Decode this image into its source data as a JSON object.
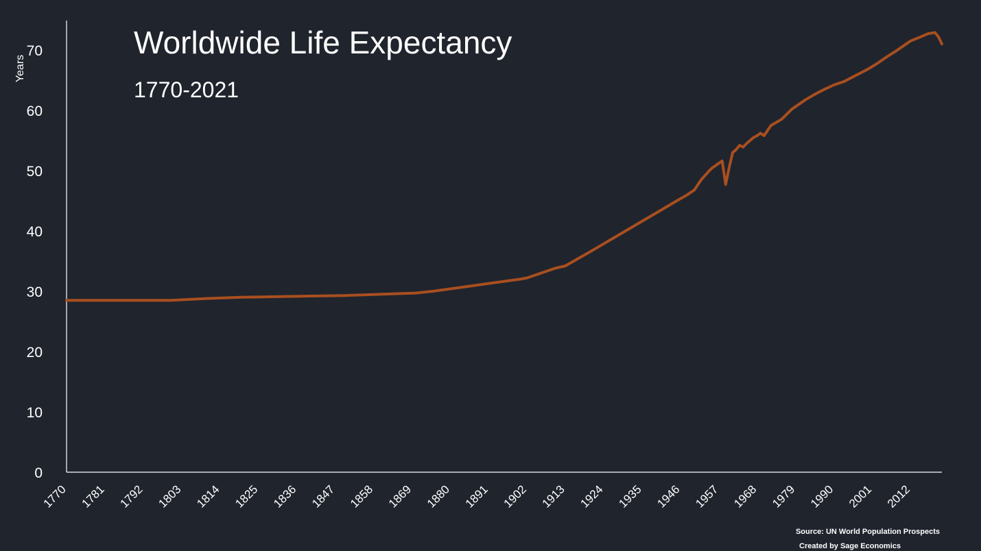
{
  "colors": {
    "background": "#20242d",
    "line": "#a94f1f",
    "axis": "#ffffff",
    "text": "#ffffff"
  },
  "chart_data": {
    "type": "line",
    "title": "Worldwide Life Expectancy",
    "subtitle": "1770-2021",
    "xlabel": "",
    "ylabel": "Years",
    "xlim": [
      1770,
      2021
    ],
    "ylim": [
      0,
      75
    ],
    "y_ticks": [
      0,
      10,
      20,
      30,
      40,
      50,
      60,
      70
    ],
    "x_ticks": [
      "1770",
      "1781",
      "1792",
      "1803",
      "1814",
      "1825",
      "1836",
      "1847",
      "1858",
      "1869",
      "1880",
      "1891",
      "1902",
      "1913",
      "1924",
      "1935",
      "1946",
      "1957",
      "1968",
      "1979",
      "1990",
      "2001",
      "2012"
    ],
    "grid": false,
    "series": [
      {
        "x": [
          1770,
          1800,
          1810,
          1820,
          1830,
          1840,
          1850,
          1860,
          1870,
          1875,
          1880,
          1885,
          1890,
          1895,
          1900,
          1902,
          1905,
          1908,
          1910,
          1913,
          1920,
          1925,
          1930,
          1935,
          1940,
          1945,
          1948,
          1950,
          1952,
          1954,
          1955,
          1956,
          1957,
          1958,
          1959,
          1960,
          1961,
          1962,
          1963,
          1964,
          1965,
          1966,
          1967,
          1968,
          1969,
          1970,
          1972,
          1975,
          1978,
          1980,
          1982,
          1985,
          1987,
          1990,
          1993,
          1996,
          1998,
          2000,
          2002,
          2005,
          2008,
          2010,
          2012,
          2015,
          2017,
          2019,
          2020,
          2021
        ],
        "y": [
          28.5,
          28.5,
          28.8,
          29.0,
          29.1,
          29.2,
          29.3,
          29.5,
          29.7,
          30.0,
          30.4,
          30.8,
          31.2,
          31.6,
          32.0,
          32.2,
          32.8,
          33.4,
          33.8,
          34.2,
          36.5,
          38.2,
          39.9,
          41.6,
          43.3,
          45.0,
          46.0,
          46.8,
          48.5,
          49.8,
          50.4,
          50.8,
          51.2,
          51.6,
          47.7,
          50.5,
          53.0,
          53.5,
          54.2,
          53.9,
          54.5,
          55.0,
          55.5,
          55.8,
          56.2,
          55.8,
          57.5,
          58.5,
          60.2,
          61.0,
          61.8,
          62.8,
          63.4,
          64.2,
          64.8,
          65.7,
          66.3,
          66.9,
          67.6,
          68.8,
          69.9,
          70.7,
          71.5,
          72.2,
          72.7,
          72.9,
          72.2,
          71.0
        ]
      }
    ],
    "source_lines": [
      "Source: UN World Population Prospects",
      "Created by Sage Economics"
    ]
  }
}
